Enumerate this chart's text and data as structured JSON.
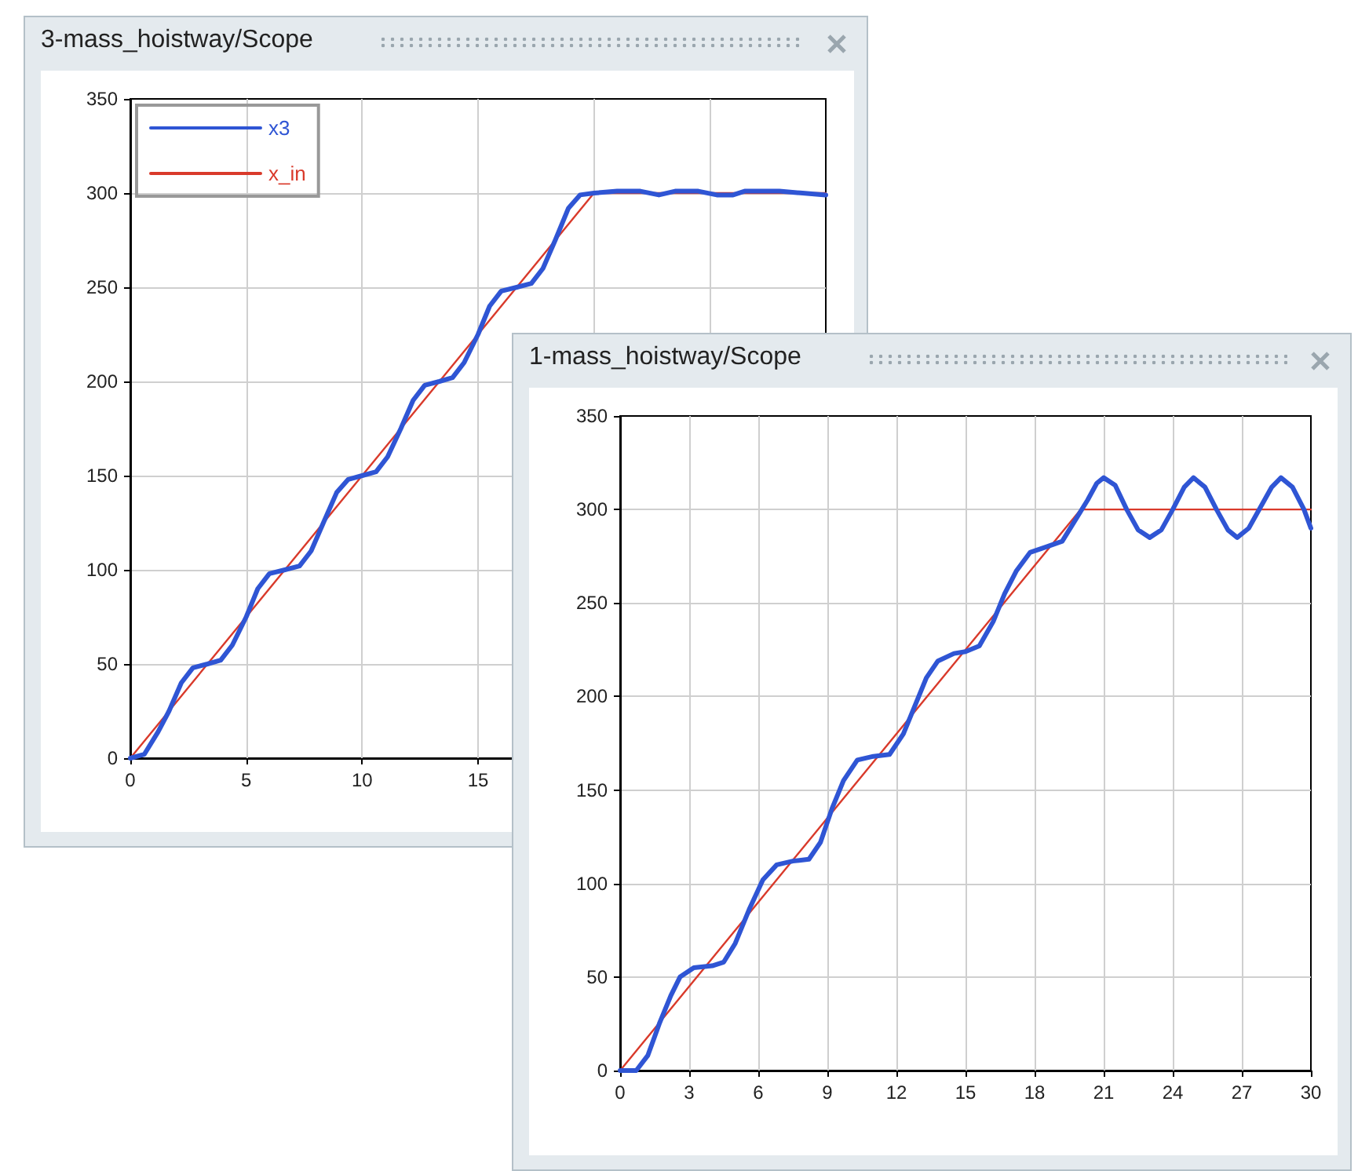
{
  "chart_data": [
    {
      "type": "line",
      "title": "3-mass_hoistway/Scope",
      "xlim": [
        0,
        30
      ],
      "xticks": [
        0,
        5,
        10,
        15,
        {
          "value": 20,
          "label": null
        },
        {
          "value": 25,
          "label": null
        },
        {
          "value": 30,
          "label": null
        }
      ],
      "ylim": [
        0,
        350
      ],
      "yticks": [
        0,
        50,
        100,
        150,
        200,
        250,
        300,
        350
      ],
      "grid": true,
      "legend": "top left",
      "series": [
        {
          "name": "x3",
          "color": "#2f55d4",
          "x": [
            0,
            0.6,
            1.2,
            1.67,
            2.2,
            2.7,
            3.33,
            3.9,
            4.4,
            5,
            5.5,
            6,
            6.67,
            7.3,
            7.8,
            8.33,
            8.9,
            9.4,
            10,
            10.6,
            11.1,
            11.67,
            12.2,
            12.7,
            13.33,
            13.9,
            14.4,
            15,
            15.5,
            16,
            16.67,
            17.3,
            17.8,
            18.33,
            18.9,
            19.4,
            20,
            21,
            22,
            22.8,
            23.5,
            24.5,
            25.3,
            26,
            26.5,
            28,
            29,
            30
          ],
          "values": [
            0,
            2,
            14,
            25,
            40,
            48,
            50,
            52,
            60,
            75,
            90,
            98,
            100,
            102,
            110,
            125,
            141,
            148,
            150,
            152,
            160,
            175,
            190,
            198,
            200,
            202,
            210,
            225,
            240,
            248,
            250,
            252,
            260,
            275,
            292,
            299,
            300,
            301,
            301,
            299,
            301,
            301,
            299,
            299,
            301,
            301,
            300,
            299
          ]
        },
        {
          "name": "x_in",
          "color": "#d93a2b",
          "x": [
            0,
            20,
            30
          ],
          "values": [
            0,
            300,
            300
          ]
        }
      ]
    },
    {
      "type": "line",
      "title": "1-mass_hoistway/Scope",
      "xlim": [
        0,
        30
      ],
      "xticks": [
        0,
        3,
        6,
        9,
        12,
        15,
        18,
        21,
        24,
        27,
        30
      ],
      "ylim": [
        0,
        350
      ],
      "yticks": [
        0,
        50,
        100,
        150,
        200,
        250,
        300,
        350
      ],
      "grid": true,
      "series": [
        {
          "color": "#2f55d4",
          "x": [
            0,
            0.7,
            1.2,
            1.7,
            2.2,
            2.6,
            3.2,
            4,
            4.5,
            5,
            5.6,
            6.2,
            6.8,
            7.5,
            8.2,
            8.7,
            9.2,
            9.7,
            10.3,
            11,
            11.7,
            12.3,
            12.8,
            13.3,
            13.8,
            14.5,
            15,
            15.6,
            16.2,
            16.7,
            17.2,
            17.8,
            18.5,
            19.2,
            19.8,
            20.3,
            20.7,
            21,
            21.5,
            22,
            22.5,
            23,
            23.5,
            24,
            24.5,
            24.9,
            25.4,
            25.9,
            26.4,
            26.8,
            27.3,
            27.8,
            28.3,
            28.7,
            29.2,
            29.7,
            30
          ],
          "values": [
            0,
            0,
            8,
            25,
            40,
            50,
            55,
            56,
            58,
            68,
            86,
            102,
            110,
            112,
            113,
            122,
            140,
            155,
            166,
            168,
            169,
            180,
            195,
            210,
            219,
            223,
            224,
            227,
            240,
            255,
            267,
            277,
            280,
            283,
            295,
            305,
            314,
            317,
            313,
            300,
            289,
            285,
            289,
            300,
            312,
            317,
            312,
            300,
            289,
            285,
            290,
            301,
            312,
            317,
            312,
            300,
            290
          ]
        },
        {
          "color": "#d93a2b",
          "x": [
            0,
            20,
            30
          ],
          "values": [
            0,
            300,
            300
          ]
        }
      ]
    }
  ]
}
